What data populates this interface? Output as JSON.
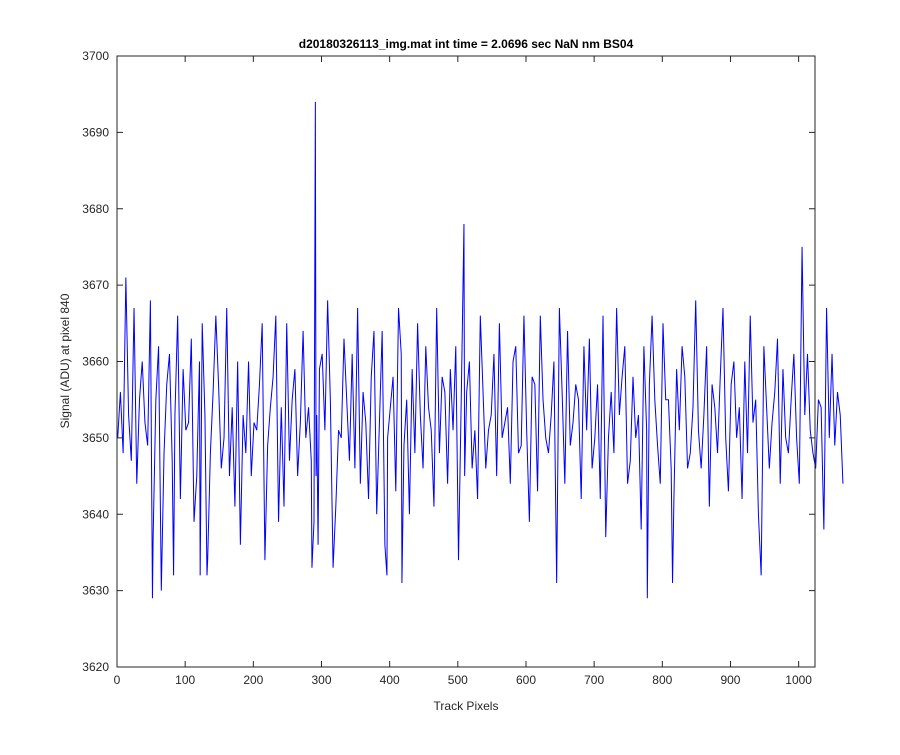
{
  "chart_data": {
    "type": "line",
    "title": "d20180326113_img.mat int time = 2.0696 sec  NaN nm BS04",
    "xlabel": "Track Pixels",
    "ylabel": "Signal (ADU) at pixel 840",
    "xlim": [
      0,
      1024
    ],
    "ylim": [
      3620,
      3700
    ],
    "xticks": [
      0,
      100,
      200,
      300,
      400,
      500,
      600,
      700,
      800,
      900,
      1000
    ],
    "yticks": [
      3620,
      3630,
      3640,
      3650,
      3660,
      3670,
      3680,
      3690,
      3700
    ],
    "xtick_labels": [
      "0",
      "100",
      "200",
      "300",
      "400",
      "500",
      "600",
      "700",
      "800",
      "900",
      "1000"
    ],
    "ytick_labels": [
      "3620",
      "3630",
      "3640",
      "3650",
      "3660",
      "3670",
      "3680",
      "3690",
      "3700"
    ],
    "grid": false,
    "series_color": "#0000ff",
    "series": [
      {
        "x_start": 1,
        "x_step": 4,
        "values": [
          3650,
          3656,
          3648,
          3671,
          3653,
          3647,
          3667,
          3644,
          3655,
          3660,
          3652,
          3649,
          3668,
          3637,
          3655,
          3662,
          3630,
          3648,
          3657,
          3661,
          3647,
          3653,
          3666,
          3642,
          3659,
          3651,
          3652,
          3663,
          3639,
          3645,
          3660,
          3665,
          3653,
          3634,
          3648,
          3656,
          3666,
          3657,
          3646,
          3650,
          3667,
          3645,
          3654,
          3641,
          3660,
          3636,
          3653,
          3648,
          3660,
          3645,
          3652,
          3651,
          3657,
          3665,
          3634,
          3649,
          3654,
          3658,
          3666,
          3639,
          3654,
          3641,
          3665,
          3647,
          3655,
          3659,
          3645,
          3652,
          3664,
          3650,
          3654,
          3647,
          3639,
          3653,
          3659,
          3661,
          3651,
          3668,
          3655,
          3633,
          3641,
          3651,
          3650,
          3663,
          3655,
          3647,
          3661,
          3646,
          3667,
          3644,
          3656,
          3652,
          3642,
          3658,
          3664,
          3640,
          3652,
          3664,
          3636,
          3650,
          3654,
          3658,
          3643,
          3667,
          3661,
          3649,
          3655,
          3640,
          3659,
          3648,
          3665,
          3653,
          3646,
          3662,
          3654,
          3651,
          3641,
          3667,
          3648,
          3658,
          3656,
          3644,
          3659,
          3651,
          3662,
          3634,
          3655,
          3648,
          3656,
          3660,
          3646,
          3651,
          3642,
          3666,
          3656,
          3646,
          3651,
          3653,
          3661,
          3645,
          3665,
          3650,
          3652,
          3654,
          3644,
          3660,
          3662,
          3648,
          3649,
          3666,
          3651,
          3639,
          3658,
          3657,
          3643,
          3666,
          3655,
          3650,
          3648,
          3653,
          3660,
          3647,
          3667,
          3656,
          3644,
          3664,
          3649,
          3652,
          3657,
          3655,
          3642,
          3662,
          3651,
          3663,
          3646,
          3650,
          3657,
          3642,
          3666,
          3637,
          3650,
          3656,
          3648,
          3667,
          3653,
          3658,
          3662,
          3644,
          3647,
          3658,
          3650,
          3653,
          3638,
          3662,
          3651,
          3657,
          3666,
          3655,
          3649,
          3644,
          3665,
          3655,
          3655,
          3646,
          3642,
          3659,
          3651,
          3662,
          3658,
          3646,
          3648,
          3654,
          3668,
          3651,
          3646,
          3653,
          3662,
          3641,
          3657,
          3654,
          3648,
          3658,
          3667,
          3650,
          3643,
          3657,
          3660,
          3650,
          3654,
          3642,
          3660,
          3648,
          3666,
          3652,
          3655,
          3640,
          3658,
          3662,
          3654,
          3646,
          3652,
          3656,
          3663,
          3644,
          3659,
          3650,
          3648,
          3655,
          3661,
          3650,
          3644,
          3675,
          3653,
          3661,
          3651,
          3648,
          3646,
          3655,
          3654,
          3638,
          3667,
          3650,
          3661,
          3649,
          3656,
          3653,
          3644
        ]
      }
    ],
    "spikes": [
      {
        "x": 291,
        "value": 3694
      },
      {
        "x": 286,
        "value": 3633
      },
      {
        "x": 292,
        "value": 3645
      },
      {
        "x": 295,
        "value": 3636
      },
      {
        "x": 509,
        "value": 3678
      },
      {
        "x": 510,
        "value": 3645
      },
      {
        "x": 396,
        "value": 3632
      },
      {
        "x": 418,
        "value": 3631
      },
      {
        "x": 52,
        "value": 3629
      },
      {
        "x": 83,
        "value": 3632
      },
      {
        "x": 122,
        "value": 3632
      },
      {
        "x": 132,
        "value": 3632
      },
      {
        "x": 645,
        "value": 3631
      },
      {
        "x": 778,
        "value": 3629
      },
      {
        "x": 815,
        "value": 3631
      },
      {
        "x": 945,
        "value": 3632
      }
    ]
  }
}
